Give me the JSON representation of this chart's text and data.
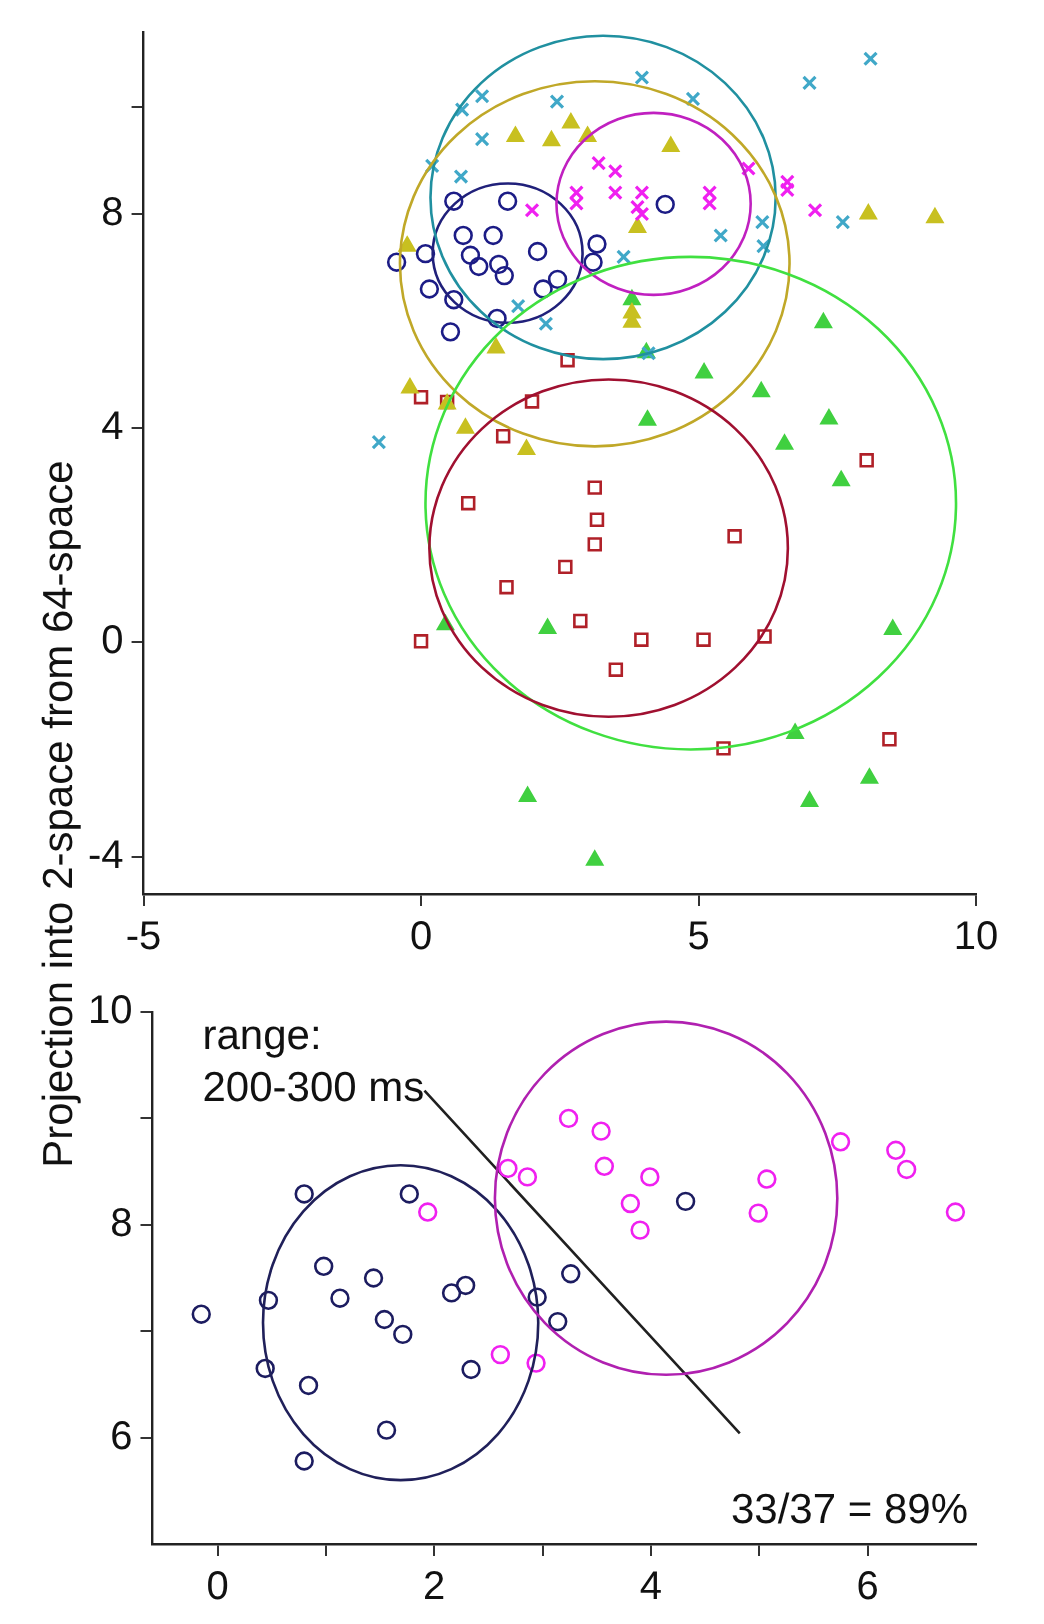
{
  "chart_data": [
    {
      "type": "scatter",
      "ylabel": "Projection into 2-space from 64-space",
      "xlim": [
        -5,
        10
      ],
      "xticks": [
        -5,
        0,
        5,
        10
      ],
      "ylim": [
        -4.7,
        11.4
      ],
      "yticks": [
        -4,
        0,
        4,
        8,
        {
          "value": 10,
          "label": null
        }
      ],
      "grid": false,
      "legend": false,
      "series": [
        {
          "type": "scatter",
          "marker": "circle",
          "color": "#1c1c86",
          "x": [
            -0.44,
            0.08,
            0.15,
            0.59,
            0.76,
            0.89,
            1.3,
            1.56,
            1.4,
            1.5,
            2.1,
            2.2,
            2.46,
            3.17,
            3.1,
            0.53,
            0.59,
            1.37,
            4.4,
            1.04
          ],
          "values": [
            7.1,
            7.26,
            6.6,
            8.24,
            7.6,
            7.23,
            7.6,
            8.24,
            7.06,
            6.85,
            7.3,
            6.6,
            6.78,
            7.44,
            7.1,
            5.8,
            6.4,
            6.05,
            8.18,
            7.02
          ]
        },
        {
          "type": "scatter",
          "marker": "cross",
          "color": "#f020f0",
          "x": [
            3.2,
            3.5,
            2.8,
            2.8,
            3.5,
            3.98,
            3.9,
            3.98,
            5.2,
            5.2,
            5.9,
            6.6,
            6.6,
            7.1,
            2.0
          ],
          "values": [
            8.95,
            8.8,
            8.4,
            8.2,
            8.4,
            8.4,
            8.13,
            8.0,
            8.4,
            8.2,
            8.85,
            8.6,
            8.45,
            8.07,
            8.07
          ]
        },
        {
          "type": "scatter",
          "marker": "triangle",
          "color": "#c8c020",
          "x": [
            2.7,
            1.7,
            2.35,
            3.0,
            4.5,
            3.8,
            3.8,
            3.9,
            1.35,
            -0.2,
            -0.25,
            0.47,
            0.8,
            1.9,
            8.06,
            9.26
          ],
          "values": [
            9.7,
            9.45,
            9.37,
            9.45,
            9.26,
            6.15,
            5.98,
            7.75,
            5.5,
            4.75,
            7.4,
            4.45,
            4.0,
            3.6,
            8.0,
            7.93
          ]
        },
        {
          "type": "scatter",
          "marker": "cross",
          "color": "#40a8c8",
          "x": [
            0.74,
            1.1,
            1.1,
            2.45,
            3.98,
            4.9,
            0.72,
            0.2,
            7.0,
            8.1,
            7.6,
            5.4,
            6.15,
            6.17,
            3.65,
            1.75,
            2.25,
            4.1,
            -0.76
          ],
          "values": [
            9.95,
            10.2,
            9.4,
            10.1,
            10.55,
            10.15,
            8.7,
            8.9,
            10.45,
            10.9,
            7.85,
            7.6,
            7.85,
            7.4,
            7.2,
            6.28,
            5.95,
            5.4,
            3.74
          ]
        },
        {
          "type": "scatter",
          "marker": "triangle",
          "color": "#40d040",
          "x": [
            7.25,
            5.1,
            6.13,
            4.08,
            7.35,
            6.55,
            7.57,
            2.28,
            8.5,
            6.74,
            8.08,
            7.0,
            1.92,
            3.13,
            4.06,
            3.8,
            0.44
          ],
          "values": [
            5.97,
            5.03,
            4.68,
            4.15,
            4.17,
            3.7,
            3.02,
            0.26,
            0.24,
            -1.7,
            -2.54,
            -2.97,
            -2.88,
            -4.07,
            5.41,
            6.4,
            0.33
          ]
        },
        {
          "type": "scatter",
          "marker": "square",
          "color": "#b02028",
          "x": [
            0,
            0.47,
            0,
            2.0,
            1.48,
            2.64,
            0.85,
            3.13,
            3.17,
            3.13,
            2.6,
            1.54,
            2.87,
            3.97,
            3.51,
            5.09,
            5.65,
            6.19,
            8.03,
            5.45,
            8.44
          ],
          "values": [
            0.02,
            4.49,
            4.58,
            4.5,
            3.85,
            5.27,
            2.6,
            2.89,
            2.29,
            1.83,
            1.41,
            1.03,
            0.4,
            0.05,
            -0.51,
            0.05,
            1.98,
            0.11,
            3.4,
            -1.98,
            -1.81
          ]
        }
      ]
    },
    {
      "type": "scatter",
      "xlim": [
        -0.6,
        7
      ],
      "xticks": [
        0,
        {
          "value": 1,
          "label": null
        },
        2,
        {
          "value": 3,
          "label": null
        },
        4,
        {
          "value": 5,
          "label": null
        },
        6
      ],
      "ylim": [
        5,
        10
      ],
      "yticks": [
        6,
        {
          "value": 7,
          "label": null
        },
        8,
        {
          "value": 9,
          "label": null
        },
        10
      ],
      "grid": false,
      "legend": false,
      "annotations": [
        "range:\n200-300 ms",
        "33/37 = 89%"
      ],
      "series": [
        {
          "type": "scatter",
          "marker": "circle",
          "color": "#1c1c60",
          "x": [
            -0.15,
            0.8,
            1.77,
            0.98,
            1.13,
            1.44,
            1.54,
            1.71,
            0.47,
            0.44,
            0.84,
            1.56,
            0.8,
            2.16,
            2.29,
            2.34,
            2.95,
            3.14,
            3.26,
            4.32
          ],
          "values": [
            7.16,
            8.29,
            8.29,
            7.61,
            7.31,
            7.5,
            7.11,
            6.97,
            7.29,
            6.65,
            6.49,
            6.07,
            5.78,
            7.36,
            7.43,
            6.64,
            7.32,
            7.09,
            7.54,
            8.22
          ]
        },
        {
          "type": "scatter",
          "marker": "circle",
          "color": "#f020f0",
          "x": [
            1.94,
            2.68,
            2.86,
            3.24,
            3.54,
            3.57,
            3.99,
            3.81,
            3.9,
            5.07,
            4.99,
            5.75,
            6.26,
            6.36,
            6.81,
            2.61,
            2.94
          ],
          "values": [
            8.12,
            8.53,
            8.45,
            9.0,
            8.88,
            8.55,
            8.45,
            8.2,
            7.95,
            8.43,
            8.11,
            8.78,
            8.7,
            8.52,
            8.12,
            6.78,
            6.7
          ]
        },
        {
          "type": "line",
          "marker": "none",
          "color": "#202020",
          "x": [
            1.91,
            4.82
          ],
          "values": [
            9.26,
            6.04
          ]
        }
      ]
    }
  ]
}
